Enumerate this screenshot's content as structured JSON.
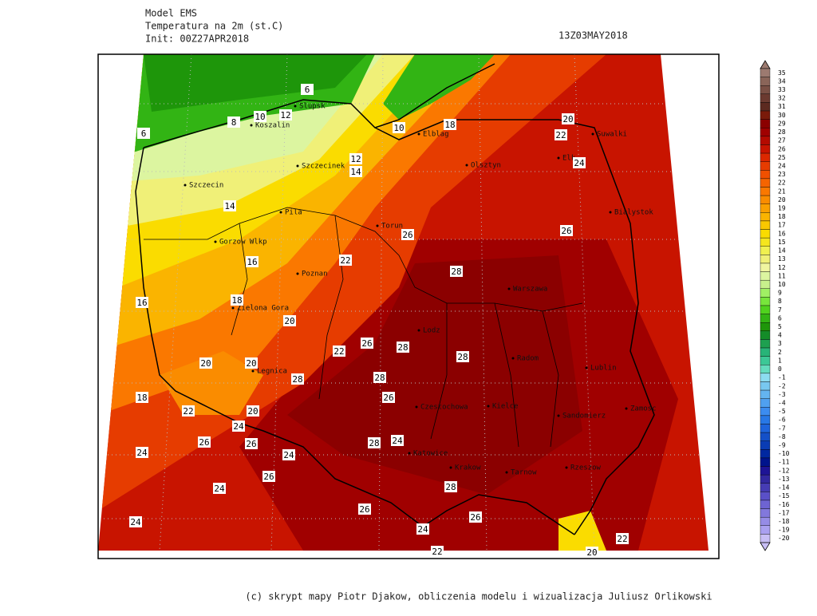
{
  "header": {
    "model": "Model EMS",
    "variable": "Temperatura na 2m (st.C)",
    "init": "Init: 00Z27APR2018",
    "valid": "13Z03MAY2018"
  },
  "cities": [
    "Slupsk",
    "Koszalin",
    "Elblag",
    "Olsztyn",
    "Elk",
    "Suwalki",
    "Szczecinek",
    "Szczecin",
    "Pila",
    "Torun",
    "Bialystok",
    "Gorzow Wlkp",
    "Poznan",
    "Warszawa",
    "Zielona Gora",
    "Lodz",
    "Radom",
    "Legnica",
    "Lublin",
    "Kielce",
    "Czestochowa",
    "Sandomierz",
    "Zamosc",
    "Katowice",
    "Krakow",
    "Tarnow",
    "Rzeszow"
  ],
  "contour_labels": [
    6,
    10,
    12,
    8,
    6,
    10,
    18,
    20,
    22,
    24,
    12,
    14,
    14,
    26,
    26,
    22,
    16,
    28,
    16,
    18,
    20,
    26,
    22,
    28,
    28,
    20,
    20,
    28,
    28,
    26,
    18,
    22,
    20,
    24,
    26,
    26,
    28,
    24,
    24,
    24,
    26,
    24,
    28,
    26,
    26,
    24,
    24,
    22,
    22,
    20
  ],
  "colorbar": {
    "levels": [
      35,
      34,
      33,
      32,
      31,
      30,
      29,
      28,
      27,
      26,
      25,
      24,
      23,
      22,
      21,
      20,
      19,
      18,
      17,
      16,
      15,
      14,
      13,
      12,
      11,
      10,
      9,
      8,
      7,
      6,
      5,
      4,
      3,
      2,
      1,
      0,
      -1,
      -2,
      -3,
      -4,
      -5,
      -6,
      -7,
      -8,
      -9,
      -10,
      -11,
      -12,
      -13,
      -14,
      -15,
      -16,
      -17,
      -18,
      -19,
      -20
    ],
    "colors": [
      "#9c7a70",
      "#8a6559",
      "#7a5045",
      "#6b3a30",
      "#5c2a20",
      "#7a1a0a",
      "#8b0000",
      "#a00000",
      "#b40a00",
      "#c81400",
      "#dc2800",
      "#e63c00",
      "#f05000",
      "#f56400",
      "#fa7800",
      "#fa8c00",
      "#faa000",
      "#fab400",
      "#fac800",
      "#fadc00",
      "#f5e61e",
      "#f0f050",
      "#f0f078",
      "#f0f5a0",
      "#dcf5a0",
      "#c8f08c",
      "#a0f064",
      "#78e63c",
      "#50d21e",
      "#32b414",
      "#1e960a",
      "#148c28",
      "#1ea050",
      "#28b478",
      "#3cc896",
      "#64dcbe",
      "#8cdcf0",
      "#78c8f0",
      "#64b4f0",
      "#50a0f0",
      "#3c8cf0",
      "#2878e6",
      "#1e64dc",
      "#1450c8",
      "#0a3cb4",
      "#0028a0",
      "#00148c",
      "#1e1496",
      "#3228a0",
      "#463cb4",
      "#5a50c8",
      "#6e64d2",
      "#8278dc",
      "#968ce6",
      "#aaa0f0",
      "#c8bef5"
    ]
  },
  "footer": "(c) skrypt mapy Piotr Djakow, obliczenia modelu i wizualizacja Juliusz Orlikowski"
}
